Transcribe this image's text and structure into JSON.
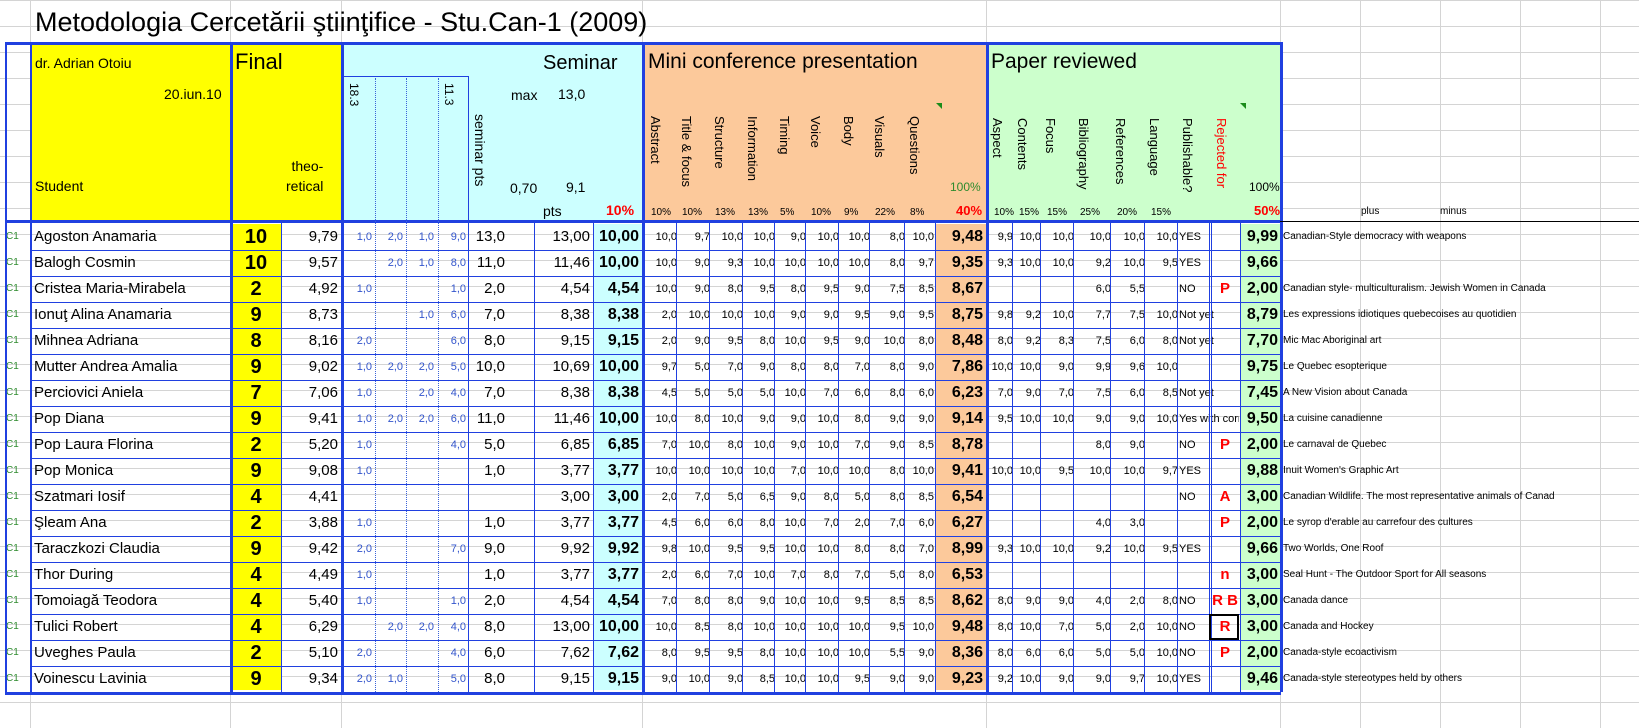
{
  "title": "Metodologia Cercetării ştiinţifice - Stu.Can-1 (2009)",
  "header": {
    "teacher": "dr. Adrian Otoiu",
    "date": "20.iun.10",
    "student": "Student",
    "final": "Final",
    "theoretical": "theo-\nretical",
    "seminar": "Seminar",
    "sem_dates": [
      "18.3",
      "11.3"
    ],
    "max_label": "max",
    "max_value": "13,0",
    "seminar_pts": "seminar pts",
    "v070": "0,70",
    "v91": "9,1",
    "pts": "pts",
    "pct_seminar": "10%",
    "mini": "Mini conference presentation",
    "mini_cols": [
      "Abstract",
      "Title & focus",
      "Structure",
      "Information",
      "Timing",
      "Voice",
      "Body",
      "Visuals",
      "Questions"
    ],
    "mini_weights": [
      "10%",
      "10%",
      "13%",
      "13%",
      "5%",
      "10%",
      "9%",
      "22%",
      "8%"
    ],
    "mini_total_weight": "40%",
    "mini_100": "100%",
    "paper": "Paper reviewed",
    "paper_cols": [
      "Aspect",
      "Contents",
      "Focus",
      "Bibliography",
      "References",
      "Language",
      "Publishable?",
      "Rejected for"
    ],
    "paper_weights": [
      "10%",
      "15%",
      "15%",
      "25%",
      "20%",
      "15%"
    ],
    "paper_total_weight": "50%",
    "paper_100": "100%",
    "plus": "plus",
    "minus": "minus"
  },
  "rows": [
    {
      "grp": "C1",
      "name": "Agoston Anamaria",
      "final": "10",
      "theo": "9,79",
      "s": [
        "1,0",
        "2,0",
        "1,0",
        "9,0"
      ],
      "sp": "13,0",
      "pts": "13,00",
      "sem": "10,00",
      "m": [
        "10,0",
        "9,7",
        "10,0",
        "10,0",
        "9,0",
        "10,0",
        "10,0",
        "8,0",
        "10,0"
      ],
      "mt": "9,48",
      "p": [
        "9,9",
        "10,0",
        "10,0",
        "10,0",
        "10,0",
        "10,0"
      ],
      "pub": "YES",
      "rej": "",
      "pt": "9,99",
      "topic": "Canadian-Style democracy with weapons"
    },
    {
      "grp": "C1",
      "name": "Balogh Cosmin",
      "final": "10",
      "theo": "9,57",
      "s": [
        "",
        "2,0",
        "1,0",
        "8,0"
      ],
      "sp": "11,0",
      "pts": "11,46",
      "sem": "10,00",
      "m": [
        "10,0",
        "9,0",
        "9,3",
        "10,0",
        "10,0",
        "10,0",
        "10,0",
        "8,0",
        "9,7"
      ],
      "mt": "9,35",
      "p": [
        "9,3",
        "10,0",
        "10,0",
        "9,2",
        "10,0",
        "9,5"
      ],
      "pub": "YES",
      "rej": "",
      "pt": "9,66",
      "topic": ""
    },
    {
      "grp": "C1",
      "name": "Cristea Maria-Mirabela",
      "final": "2",
      "theo": "4,92",
      "s": [
        "1,0",
        "",
        "",
        "1,0"
      ],
      "sp": "2,0",
      "pts": "4,54",
      "sem": "4,54",
      "m": [
        "10,0",
        "9,0",
        "8,0",
        "9,5",
        "8,0",
        "9,5",
        "9,0",
        "7,5",
        "8,5"
      ],
      "mt": "8,67",
      "p": [
        "",
        "",
        "",
        "6,0",
        "5,5",
        ""
      ],
      "pub": "NO",
      "rej": "P",
      "pt": "2,00",
      "topic": "Canadian style- multiculturalism. Jewish Women in Canada"
    },
    {
      "grp": "C1",
      "name": "Ionuţ Alina Anamaria",
      "final": "9",
      "theo": "8,73",
      "s": [
        "",
        "",
        "1,0",
        "6,0"
      ],
      "sp": "7,0",
      "pts": "8,38",
      "sem": "8,38",
      "m": [
        "2,0",
        "10,0",
        "10,0",
        "10,0",
        "9,0",
        "9,0",
        "9,5",
        "9,0",
        "9,5"
      ],
      "mt": "8,75",
      "p": [
        "9,8",
        "9,2",
        "10,0",
        "7,7",
        "7,5",
        "10,0"
      ],
      "pub": "Not yet",
      "rej": "",
      "pt": "8,79",
      "topic": "Les expressions idiotiques quebecoises au quotidien"
    },
    {
      "grp": "C1",
      "name": "Mihnea Adriana",
      "final": "8",
      "theo": "8,16",
      "s": [
        "2,0",
        "",
        "",
        "6,0"
      ],
      "sp": "8,0",
      "pts": "9,15",
      "sem": "9,15",
      "m": [
        "2,0",
        "9,0",
        "9,5",
        "8,0",
        "10,0",
        "9,5",
        "9,0",
        "10,0",
        "8,0"
      ],
      "mt": "8,48",
      "p": [
        "8,0",
        "9,2",
        "8,3",
        "7,5",
        "6,0",
        "8,0"
      ],
      "pub": "Not yet",
      "rej": "",
      "pt": "7,70",
      "topic": "Mic Mac Aboriginal art"
    },
    {
      "grp": "C1",
      "name": "Mutter Andrea Amalia",
      "final": "9",
      "theo": "9,02",
      "s": [
        "1,0",
        "2,0",
        "2,0",
        "5,0"
      ],
      "sp": "10,0",
      "pts": "10,69",
      "sem": "10,00",
      "m": [
        "9,7",
        "5,0",
        "7,0",
        "9,0",
        "8,0",
        "8,0",
        "7,0",
        "8,0",
        "9,0"
      ],
      "mt": "7,86",
      "p": [
        "10,0",
        "10,0",
        "9,0",
        "9,9",
        "9,6",
        "10,0"
      ],
      "pub": "",
      "rej": "",
      "pt": "9,75",
      "topic": "Le Quebec esopterique"
    },
    {
      "grp": "C1",
      "name": "Perciovici Aniela",
      "final": "7",
      "theo": "7,06",
      "s": [
        "1,0",
        "",
        "2,0",
        "4,0"
      ],
      "sp": "7,0",
      "pts": "8,38",
      "sem": "8,38",
      "m": [
        "4,5",
        "5,0",
        "5,0",
        "5,0",
        "10,0",
        "7,0",
        "6,0",
        "8,0",
        "6,0"
      ],
      "mt": "6,23",
      "p": [
        "7,0",
        "9,0",
        "7,0",
        "7,5",
        "6,0",
        "8,5"
      ],
      "pub": "Not yet",
      "rej": "",
      "pt": "7,45",
      "topic": "A New Vision about Canada"
    },
    {
      "grp": "C1",
      "name": "Pop Diana",
      "final": "9",
      "theo": "9,41",
      "s": [
        "1,0",
        "2,0",
        "2,0",
        "6,0"
      ],
      "sp": "11,0",
      "pts": "11,46",
      "sem": "10,00",
      "m": [
        "10,0",
        "8,0",
        "10,0",
        "9,0",
        "9,0",
        "10,0",
        "8,0",
        "9,0",
        "9,0"
      ],
      "mt": "9,14",
      "p": [
        "9,5",
        "10,0",
        "10,0",
        "9,0",
        "9,0",
        "10,0"
      ],
      "pub": "Yes with corr",
      "rej": "",
      "pt": "9,50",
      "topic": "La cuisine canadienne"
    },
    {
      "grp": "C1",
      "name": "Pop Laura Florina",
      "final": "2",
      "theo": "5,20",
      "s": [
        "1,0",
        "",
        "",
        "4,0"
      ],
      "sp": "5,0",
      "pts": "6,85",
      "sem": "6,85",
      "m": [
        "7,0",
        "10,0",
        "8,0",
        "10,0",
        "9,0",
        "10,0",
        "7,0",
        "9,0",
        "8,5"
      ],
      "mt": "8,78",
      "p": [
        "",
        "",
        "",
        "8,0",
        "9,0",
        ""
      ],
      "pub": "NO",
      "rej": "P",
      "pt": "2,00",
      "topic": "Le carnaval de Quebec"
    },
    {
      "grp": "C1",
      "name": "Pop Monica",
      "final": "9",
      "theo": "9,08",
      "s": [
        "1,0",
        "",
        "",
        ""
      ],
      "sp": "1,0",
      "pts": "3,77",
      "sem": "3,77",
      "m": [
        "10,0",
        "10,0",
        "10,0",
        "10,0",
        "7,0",
        "10,0",
        "10,0",
        "8,0",
        "10,0"
      ],
      "mt": "9,41",
      "p": [
        "10,0",
        "10,0",
        "9,5",
        "10,0",
        "10,0",
        "9,7"
      ],
      "pub": "YES",
      "rej": "",
      "pt": "9,88",
      "topic": "Inuit Women's Graphic Art"
    },
    {
      "grp": "C1",
      "name": "Szatmari Iosif",
      "final": "4",
      "theo": "4,41",
      "s": [
        "",
        "",
        "",
        ""
      ],
      "sp": "",
      "pts": "3,00",
      "sem": "3,00",
      "m": [
        "2,0",
        "7,0",
        "5,0",
        "6,5",
        "9,0",
        "8,0",
        "5,0",
        "8,0",
        "8,5"
      ],
      "mt": "6,54",
      "p": [
        "",
        "",
        "",
        "",
        "",
        ""
      ],
      "pub": "NO",
      "rej": "A",
      "pt": "3,00",
      "topic": "Canadian Wildlife. The most representative animals of Canad"
    },
    {
      "grp": "C1",
      "name": "Şleam Ana",
      "final": "2",
      "theo": "3,88",
      "s": [
        "1,0",
        "",
        "",
        ""
      ],
      "sp": "1,0",
      "pts": "3,77",
      "sem": "3,77",
      "m": [
        "4,5",
        "6,0",
        "6,0",
        "8,0",
        "10,0",
        "7,0",
        "2,0",
        "7,0",
        "6,0"
      ],
      "mt": "6,27",
      "p": [
        "",
        "",
        "",
        "4,0",
        "3,0",
        ""
      ],
      "pub": "",
      "rej": "P",
      "pt": "2,00",
      "topic": "Le syrop d'erable au carrefour des cultures"
    },
    {
      "grp": "C1",
      "name": "Taraczkozi Claudia",
      "final": "9",
      "theo": "9,42",
      "s": [
        "2,0",
        "",
        "",
        "7,0"
      ],
      "sp": "9,0",
      "pts": "9,92",
      "sem": "9,92",
      "m": [
        "9,8",
        "10,0",
        "9,5",
        "9,5",
        "10,0",
        "10,0",
        "8,0",
        "8,0",
        "7,0"
      ],
      "mt": "8,99",
      "p": [
        "9,3",
        "10,0",
        "10,0",
        "9,2",
        "10,0",
        "9,5"
      ],
      "pub": "YES",
      "rej": "",
      "pt": "9,66",
      "topic": "Two Worlds, One Roof"
    },
    {
      "grp": "C1",
      "name": "Thor During",
      "final": "4",
      "theo": "4,49",
      "s": [
        "1,0",
        "",
        "",
        ""
      ],
      "sp": "1,0",
      "pts": "3,77",
      "sem": "3,77",
      "m": [
        "2,0",
        "6,0",
        "7,0",
        "10,0",
        "7,0",
        "8,0",
        "7,0",
        "5,0",
        "8,0"
      ],
      "mt": "6,53",
      "p": [
        "",
        "",
        "",
        "",
        "",
        ""
      ],
      "pub": "",
      "rej": "n",
      "pt": "3,00",
      "topic": "Seal Hunt - The Outdoor Sport for All seasons"
    },
    {
      "grp": "C1",
      "name": "Tomoiagă Teodora",
      "final": "4",
      "theo": "5,40",
      "s": [
        "1,0",
        "",
        "",
        "1,0"
      ],
      "sp": "2,0",
      "pts": "4,54",
      "sem": "4,54",
      "m": [
        "7,0",
        "8,0",
        "8,0",
        "9,0",
        "10,0",
        "10,0",
        "9,5",
        "8,5",
        "8,5"
      ],
      "mt": "8,62",
      "p": [
        "8,0",
        "9,0",
        "9,0",
        "4,0",
        "2,0",
        "8,0"
      ],
      "pub": "NO",
      "rej": "R B",
      "pt": "3,00",
      "topic": "Canada dance"
    },
    {
      "grp": "C1",
      "name": "Tulici Robert",
      "final": "4",
      "theo": "6,29",
      "s": [
        "",
        "2,0",
        "2,0",
        "4,0"
      ],
      "sp": "8,0",
      "pts": "13,00",
      "sem": "10,00",
      "m": [
        "10,0",
        "8,5",
        "8,0",
        "10,0",
        "10,0",
        "10,0",
        "10,0",
        "9,5",
        "10,0"
      ],
      "mt": "9,48",
      "p": [
        "8,0",
        "10,0",
        "7,0",
        "5,0",
        "2,0",
        "10,0"
      ],
      "pub": "NO",
      "rej": "R",
      "pt": "3,00",
      "topic": "Canada and Hockey"
    },
    {
      "grp": "C1",
      "name": "Uveghes Paula",
      "final": "2",
      "theo": "5,10",
      "s": [
        "2,0",
        "",
        "",
        "4,0"
      ],
      "sp": "6,0",
      "pts": "7,62",
      "sem": "7,62",
      "m": [
        "8,0",
        "9,5",
        "9,5",
        "8,0",
        "10,0",
        "10,0",
        "10,0",
        "5,5",
        "9,0"
      ],
      "mt": "8,36",
      "p": [
        "8,0",
        "6,0",
        "6,0",
        "5,0",
        "5,0",
        "10,0"
      ],
      "pub": "NO",
      "rej": "P",
      "pt": "2,00",
      "topic": "Canada-style ecoactivism"
    },
    {
      "grp": "C1",
      "name": "Voinescu Lavinia",
      "final": "9",
      "theo": "9,34",
      "s": [
        "2,0",
        "1,0",
        "",
        "5,0"
      ],
      "sp": "8,0",
      "pts": "9,15",
      "sem": "9,15",
      "m": [
        "9,0",
        "10,0",
        "9,0",
        "8,5",
        "10,0",
        "10,0",
        "9,5",
        "9,0",
        "9,0"
      ],
      "mt": "9,23",
      "p": [
        "9,2",
        "10,0",
        "9,0",
        "9,0",
        "9,7",
        "10,0"
      ],
      "pub": "YES",
      "rej": "",
      "pt": "9,46",
      "topic": "Canada-style stereotypes held by others"
    }
  ],
  "colors": {
    "yellow": "#ffff00",
    "cyan": "#ccffff",
    "orange": "#fcc99b",
    "green": "#ccffcc",
    "border": "#2040e0",
    "red": "#ff0000",
    "blue_small": "#3355cc",
    "green_text": "#2e8b2e"
  }
}
